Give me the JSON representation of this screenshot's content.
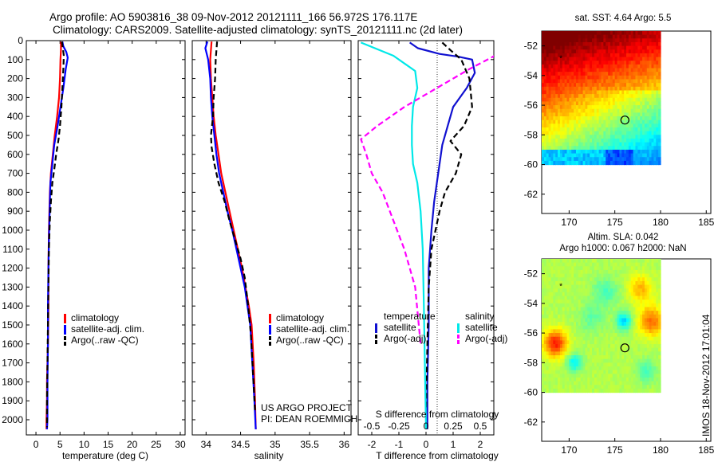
{
  "header": {
    "line1": "Argo profile: AO 5903816_38 09-Nov-2012 20121111_166 56.972S 176.117E",
    "line2": "Climatology: CARS2009. Satellite-adjusted climatology: synTS_20121111.nc (2d later)"
  },
  "stamp": "IMOS 18-Nov-2012 17:01:04",
  "project": {
    "line1": "US ARGO PROJECT",
    "line2": "PI: DEAN ROEMMICH"
  },
  "colors": {
    "climatology": "#ff0000",
    "satellite": "#0000ff",
    "argo": "#000000",
    "sat_diff_T": "#1010d0",
    "sat_diff_S": "#00e8e8",
    "argo_diff_S": "#ff00ff"
  },
  "chart_data": [
    {
      "type": "line",
      "xlabel": "temperature (deg C)",
      "ylabel": "",
      "xlim": [
        -2,
        31
      ],
      "ylim": [
        2080,
        0
      ],
      "xticks": [
        "0",
        "5",
        "10",
        "15",
        "20",
        "25",
        "30"
      ],
      "yticks": [
        "0",
        "100",
        "200",
        "300",
        "400",
        "500",
        "600",
        "700",
        "800",
        "900",
        "1000",
        "1100",
        "1200",
        "1300",
        "1400",
        "1500",
        "1600",
        "1700",
        "1800",
        "1900",
        "2000"
      ],
      "legend": [
        "climatology",
        "satellite-adj. clim.",
        "Argo(..raw -QC)"
      ],
      "series": [
        {
          "name": "climatology",
          "style": "solid",
          "color": "#ff0000",
          "x": [
            5.2,
            5.2,
            5.1,
            5.0,
            4.8,
            4.4,
            3.9,
            3.5,
            3.1,
            2.9,
            2.8,
            2.7,
            2.6,
            2.6,
            2.5,
            2.4,
            2.3,
            2.3,
            2.2,
            2.2
          ],
          "y": [
            5,
            50,
            100,
            200,
            300,
            400,
            500,
            600,
            700,
            800,
            900,
            1000,
            1200,
            1400,
            1600,
            1700,
            1800,
            1900,
            2000,
            2050
          ]
        },
        {
          "name": "satellite-adj. clim.",
          "style": "solid",
          "color": "#0000ff",
          "x": [
            5.5,
            5.7,
            6.3,
            6.6,
            6.2,
            5.7,
            5.1,
            4.5,
            3.8,
            3.4,
            3.0,
            2.9,
            2.8,
            2.7,
            2.6,
            2.5,
            2.5,
            2.4,
            2.4,
            2.3
          ],
          "y": [
            5,
            30,
            60,
            90,
            150,
            250,
            350,
            450,
            550,
            650,
            750,
            850,
            950,
            1050,
            1200,
            1400,
            1600,
            1800,
            2000,
            2050
          ]
        },
        {
          "name": "Argo(..raw -QC)",
          "style": "dashed",
          "color": "#000000",
          "x": [
            5.4,
            5.6,
            5.8,
            5.7,
            5.5,
            5.3,
            5.0,
            4.7,
            4.2,
            3.8,
            3.4,
            3.1,
            2.9,
            2.7,
            2.6,
            2.5,
            2.4,
            2.3,
            2.3
          ],
          "y": [
            5,
            40,
            80,
            150,
            250,
            350,
            450,
            520,
            600,
            680,
            750,
            850,
            950,
            1100,
            1300,
            1500,
            1700,
            1900,
            2040
          ]
        }
      ]
    },
    {
      "type": "line",
      "xlabel": "salinity",
      "ylabel": "",
      "xlim": [
        33.8,
        36.1
      ],
      "ylim": [
        2080,
        0
      ],
      "xticks": [
        "34",
        "34.5",
        "35",
        "35.5",
        "36"
      ],
      "legend": [
        "climatology",
        "satellite-adj. clim.",
        "Argo(..raw -QC)"
      ],
      "series": [
        {
          "name": "climatology",
          "style": "solid",
          "color": "#ff0000",
          "x": [
            34.08,
            34.07,
            34.06,
            34.07,
            34.09,
            34.11,
            34.14,
            34.18,
            34.22,
            34.28,
            34.34,
            34.4,
            34.46,
            34.52,
            34.57,
            34.62,
            34.66,
            34.69,
            34.71,
            34.72
          ],
          "y": [
            5,
            50,
            100,
            200,
            300,
            400,
            500,
            600,
            700,
            800,
            900,
            1000,
            1100,
            1200,
            1300,
            1400,
            1500,
            1700,
            1900,
            2050
          ]
        },
        {
          "name": "satellite-adj. clim.",
          "style": "solid",
          "color": "#0000ff",
          "x": [
            34.02,
            33.99,
            34.03,
            34.06,
            34.07,
            34.09,
            34.12,
            34.15,
            34.19,
            34.25,
            34.31,
            34.38,
            34.44,
            34.5,
            34.56,
            34.6,
            34.64,
            34.67,
            34.7,
            34.72
          ],
          "y": [
            5,
            40,
            100,
            200,
            300,
            400,
            500,
            600,
            700,
            800,
            900,
            1000,
            1100,
            1200,
            1300,
            1400,
            1500,
            1700,
            1900,
            2050
          ]
        },
        {
          "name": "Argo(..raw -QC)",
          "style": "dashed",
          "color": "#000000",
          "x": [
            34.16,
            34.15,
            34.14,
            34.13,
            34.11,
            34.1,
            34.07,
            34.08,
            34.12,
            34.18,
            34.27,
            34.34,
            34.42,
            34.5,
            34.56,
            34.61,
            34.65,
            34.68,
            34.71
          ],
          "y": [
            5,
            50,
            100,
            200,
            300,
            400,
            500,
            560,
            650,
            750,
            850,
            950,
            1050,
            1150,
            1250,
            1400,
            1550,
            1750,
            1950
          ]
        }
      ]
    },
    {
      "type": "line",
      "xlabel": "T difference from climatology",
      "xlabel2": "S difference from climatology",
      "xlim": [
        -2.5,
        2.5
      ],
      "ylim": [
        2080,
        0
      ],
      "xticks": [
        "-2",
        "-1",
        "0",
        "1",
        "2"
      ],
      "xticks2": [
        "-0.5",
        "-0.25",
        "0",
        "0.25",
        "0.5"
      ],
      "legend_groups": [
        "temperature",
        "salinity"
      ],
      "legend": [
        "satellite",
        "Argo(-adj)",
        "satellite",
        "Argo(-adj)"
      ],
      "series": [
        {
          "name": "satellite",
          "group": "temperature",
          "style": "solid",
          "color": "#1010d0",
          "x": [
            -0.6,
            -0.3,
            0.5,
            1.2,
            1.7,
            1.8,
            1.5,
            1.0,
            0.8,
            0.6,
            0.5,
            0.4,
            0.3,
            0.2,
            0.1,
            0.1,
            0.05,
            0.05
          ],
          "y": [
            10,
            40,
            70,
            85,
            100,
            170,
            250,
            350,
            450,
            550,
            650,
            750,
            850,
            1000,
            1200,
            1500,
            1800,
            2050
          ]
        },
        {
          "name": "Argo(-adj)",
          "group": "temperature",
          "style": "dashed",
          "color": "#000000",
          "x": [
            0.6,
            0.9,
            1.3,
            1.6,
            1.7,
            1.4,
            0.9,
            1.3,
            1.1,
            0.7,
            0.5,
            0.35,
            0.2,
            0.1,
            0.05,
            0.0
          ],
          "y": [
            10,
            50,
            100,
            200,
            350,
            450,
            530,
            600,
            700,
            800,
            900,
            1000,
            1100,
            1300,
            1600,
            1950
          ]
        },
        {
          "name": "satellite",
          "group": "salinity",
          "style": "solid",
          "color": "#00e8e8",
          "x": [
            -0.6,
            -0.3,
            -0.1,
            -0.08,
            -0.12,
            -0.13,
            -0.13,
            -0.12,
            -0.08,
            -0.05,
            -0.03,
            -0.02,
            0.0
          ],
          "y": [
            10,
            80,
            160,
            250,
            350,
            450,
            550,
            650,
            750,
            900,
            1100,
            1400,
            2050
          ]
        },
        {
          "name": "Argo(-adj)",
          "group": "salinity",
          "style": "dashed",
          "color": "#ff00ff",
          "x": [
            0.65,
            0.7,
            0.4,
            0.1,
            -0.2,
            -0.45,
            -0.6,
            -0.55,
            -0.5,
            -0.4,
            -0.3,
            -0.2,
            -0.1,
            -0.05
          ],
          "y": [
            10,
            60,
            150,
            250,
            350,
            450,
            520,
            600,
            700,
            800,
            950,
            1100,
            1300,
            1600
          ]
        }
      ]
    },
    {
      "type": "heatmap",
      "title": "sat. SST: 4.64 Argo: 5.5",
      "xlim": [
        167,
        185.5
      ],
      "ylim": [
        -63.3,
        -51
      ],
      "xticks": [
        "170",
        "175",
        "180",
        "185"
      ],
      "yticks": [
        "-52",
        "-54",
        "-56",
        "-58",
        "-60",
        "-62"
      ],
      "profile_marker": [
        176.1,
        -57.0
      ],
      "star_marker": [
        169.1,
        -52.8
      ]
    },
    {
      "type": "heatmap",
      "title": "Altim. SLA: 0.042",
      "subtitle": "Argo h1000: 0.067 h2000: NaN",
      "xlim": [
        167,
        185.5
      ],
      "ylim": [
        -63.3,
        -51
      ],
      "xticks": [
        "170",
        "175",
        "180",
        "185"
      ],
      "yticks": [
        "-52",
        "-54",
        "-56",
        "-58",
        "-60",
        "-62"
      ],
      "profile_marker": [
        176.1,
        -57.0
      ],
      "star_marker": [
        169.1,
        -52.8
      ]
    }
  ]
}
